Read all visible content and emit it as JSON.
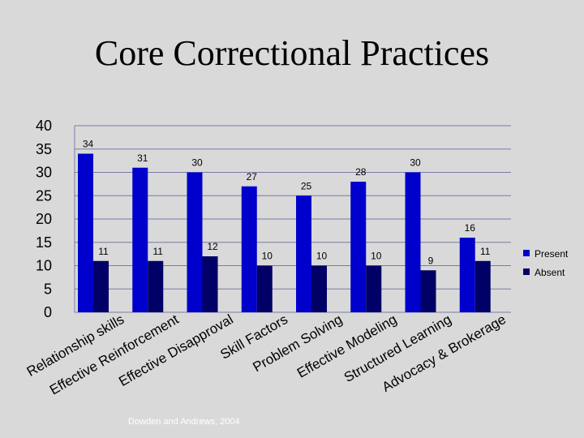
{
  "title": "Core Correctional Practices",
  "source_note": "Dowden and Andrews, 2004",
  "colors": {
    "present": "#0000cc",
    "absent": "#000066",
    "gridline": "#7a7aaa",
    "background": "#d9d9d9"
  },
  "chart_data": {
    "type": "bar",
    "title": "Core Correctional Practices",
    "xlabel": "",
    "ylabel": "",
    "ylim": [
      0,
      40
    ],
    "yticks": [
      0,
      5,
      10,
      15,
      20,
      25,
      30,
      35,
      40
    ],
    "grid": true,
    "legend_position": "right",
    "categories": [
      "Relationship skills",
      "Effective Reinforcement",
      "Effective Disapproval",
      "Skill Factors",
      "Problem Solving",
      "Effective Modeling",
      "Structured Learning",
      "Advocacy & Brokerage"
    ],
    "series": [
      {
        "name": "Present",
        "values": [
          34,
          31,
          30,
          27,
          25,
          28,
          30,
          16
        ]
      },
      {
        "name": "Absent",
        "values": [
          11,
          11,
          12,
          10,
          10,
          10,
          9,
          11
        ]
      }
    ]
  }
}
